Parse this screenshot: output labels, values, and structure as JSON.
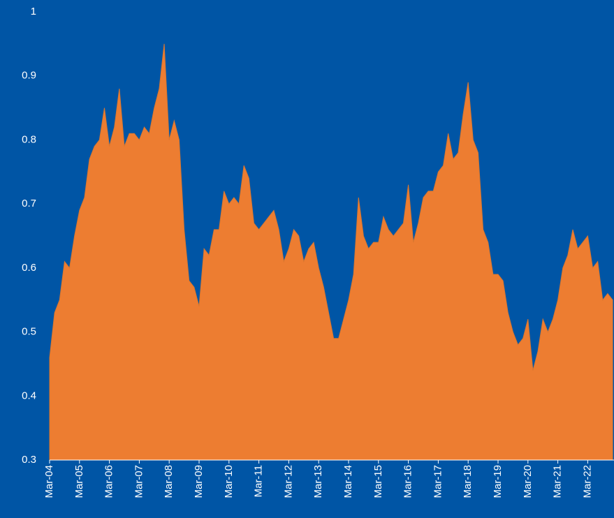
{
  "chart_data": {
    "type": "area",
    "color": "#ed7d31",
    "ylim": [
      0.3,
      1
    ],
    "yticks": [
      0.3,
      0.4,
      0.5,
      0.6,
      0.7,
      0.8,
      0.9,
      1
    ],
    "categories": [
      "Mar-04",
      null,
      null,
      null,
      null,
      null,
      "Mar-05",
      null,
      null,
      null,
      null,
      null,
      "Mar-06",
      null,
      null,
      null,
      null,
      null,
      "Mar-07",
      null,
      null,
      null,
      null,
      null,
      "Mar-08",
      null,
      null,
      null,
      null,
      null,
      "Mar-09",
      null,
      null,
      null,
      null,
      null,
      "Mar-10",
      null,
      null,
      null,
      null,
      null,
      "Mar-11",
      null,
      null,
      null,
      null,
      null,
      "Mar-12",
      null,
      null,
      null,
      null,
      null,
      "Mar-13",
      null,
      null,
      null,
      null,
      null,
      "Mar-14",
      null,
      null,
      null,
      null,
      null,
      "Mar-15",
      null,
      null,
      null,
      null,
      null,
      "Mar-16",
      null,
      null,
      null,
      null,
      null,
      "Mar-17",
      null,
      null,
      null,
      null,
      null,
      "Mar-18",
      null,
      null,
      null,
      null,
      null,
      "Mar-19",
      null,
      null,
      null,
      null,
      null,
      "Mar-20",
      null,
      null,
      null,
      null,
      null,
      "Mar-21",
      null,
      null,
      null,
      null,
      null,
      "Mar-22",
      null,
      null,
      null,
      null,
      null
    ],
    "values": [
      0.46,
      0.53,
      0.55,
      0.61,
      0.6,
      0.65,
      0.69,
      0.71,
      0.77,
      0.79,
      0.8,
      0.85,
      0.79,
      0.82,
      0.88,
      0.79,
      0.81,
      0.81,
      0.8,
      0.82,
      0.81,
      0.85,
      0.88,
      0.95,
      0.8,
      0.83,
      0.8,
      0.66,
      0.58,
      0.57,
      0.54,
      0.63,
      0.62,
      0.66,
      0.66,
      0.72,
      0.7,
      0.71,
      0.7,
      0.76,
      0.74,
      0.67,
      0.66,
      0.67,
      0.68,
      0.69,
      0.66,
      0.61,
      0.63,
      0.66,
      0.65,
      0.61,
      0.63,
      0.64,
      0.6,
      0.57,
      0.53,
      0.49,
      0.49,
      0.52,
      0.55,
      0.59,
      0.71,
      0.65,
      0.63,
      0.64,
      0.64,
      0.68,
      0.66,
      0.65,
      0.66,
      0.67,
      0.73,
      0.64,
      0.67,
      0.71,
      0.72,
      0.72,
      0.75,
      0.76,
      0.81,
      0.77,
      0.78,
      0.84,
      0.89,
      0.8,
      0.78,
      0.66,
      0.64,
      0.59,
      0.59,
      0.58,
      0.53,
      0.5,
      0.48,
      0.49,
      0.52,
      0.44,
      0.47,
      0.52,
      0.5,
      0.52,
      0.55,
      0.6,
      0.62,
      0.66,
      0.63,
      0.64,
      0.65,
      0.6,
      0.61,
      0.55,
      0.56,
      0.55
    ]
  }
}
